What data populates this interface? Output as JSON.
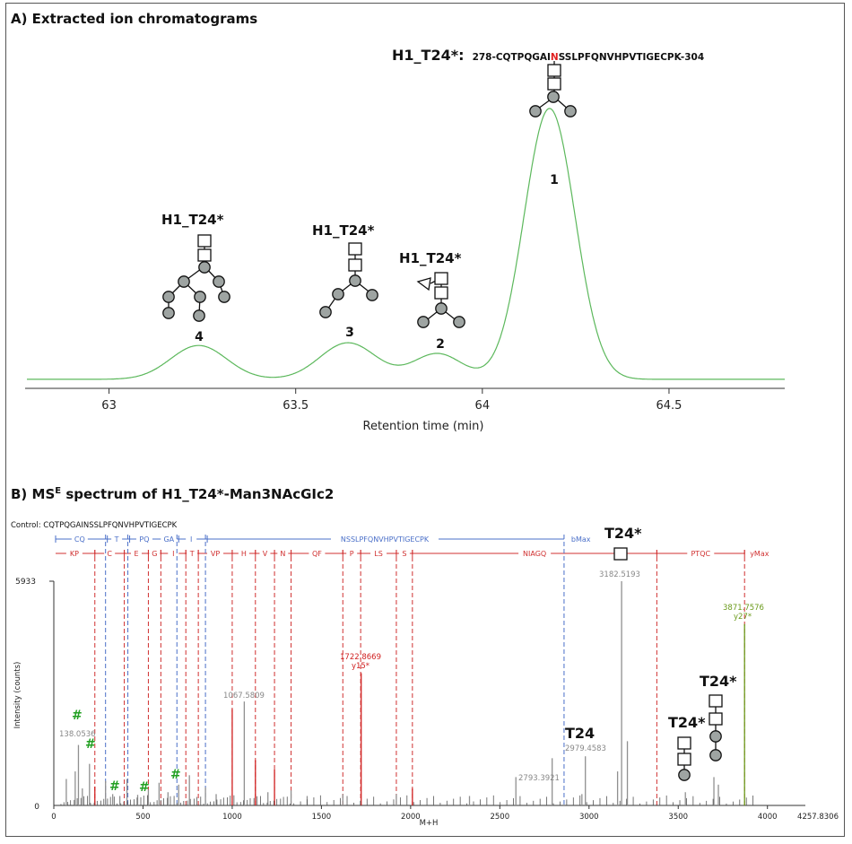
{
  "panelA": {
    "title": "A) Extracted ion chromatograms",
    "peptide_label": "H1_T24*:",
    "peptide_seq_pre": "278-CQTPQGAI",
    "peptide_seq_site": "N",
    "peptide_seq_post": "SSLPFQNVHPVTIGECPK-304",
    "site_color": "#e02020",
    "glycan_label": "H1_T24*",
    "xlabel": "Retention time (min)",
    "xticks": [
      "63",
      "63.5",
      "64",
      "64.5"
    ],
    "peak_numbers": [
      "1",
      "2",
      "3",
      "4"
    ],
    "trace_color": "#5cb85c"
  },
  "chart_data": [
    {
      "type": "line",
      "title": "A) Extracted ion chromatograms",
      "xlabel": "Retention time (min)",
      "ylabel": "",
      "xlim": [
        62.78,
        64.81
      ],
      "xticks": [
        63,
        63.5,
        64,
        64.5
      ],
      "baseline": 0.03,
      "peaks": [
        {
          "label": "4",
          "rt": 63.24,
          "height": 0.125,
          "width": 0.075
        },
        {
          "label": "3",
          "rt": 63.64,
          "height": 0.135,
          "width": 0.075
        },
        {
          "label": "2",
          "rt": 63.88,
          "height": 0.095,
          "width": 0.065
        },
        {
          "label": "1",
          "rt": 64.18,
          "height": 1.0,
          "width": 0.068
        }
      ]
    },
    {
      "type": "bar",
      "title": "B) MSE spectrum of H1_T24*-Man3NAcGIc2",
      "xlabel": "M+H",
      "ylabel": "Intensity (counts)",
      "xlim": [
        0,
        4257.8306
      ],
      "ylim": [
        0,
        5933
      ],
      "xticks": [
        0,
        500,
        1000,
        1500,
        2000,
        2500,
        3000,
        3500,
        4000
      ],
      "peaks": [
        {
          "mz": 138.0536,
          "intensity": 1600,
          "color": "#909090",
          "label": "138.0536"
        },
        {
          "mz": 70,
          "intensity": 700,
          "color": "#909090"
        },
        {
          "mz": 120,
          "intensity": 900,
          "color": "#909090"
        },
        {
          "mz": 160,
          "intensity": 450,
          "color": "#909090"
        },
        {
          "mz": 200,
          "intensity": 1100,
          "color": "#909090"
        },
        {
          "mz": 230,
          "intensity": 500,
          "color": "#d02020"
        },
        {
          "mz": 290,
          "intensity": 650,
          "color": "#909090"
        },
        {
          "mz": 330,
          "intensity": 300,
          "color": "#909090"
        },
        {
          "mz": 370,
          "intensity": 250,
          "color": "#909090"
        },
        {
          "mz": 410,
          "intensity": 700,
          "color": "#909090"
        },
        {
          "mz": 470,
          "intensity": 280,
          "color": "#909090"
        },
        {
          "mz": 530,
          "intensity": 420,
          "color": "#909090"
        },
        {
          "mz": 590,
          "intensity": 600,
          "color": "#909090"
        },
        {
          "mz": 640,
          "intensity": 350,
          "color": "#909090"
        },
        {
          "mz": 700,
          "intensity": 550,
          "color": "#909090"
        },
        {
          "mz": 760,
          "intensity": 800,
          "color": "#909090"
        },
        {
          "mz": 850,
          "intensity": 480,
          "color": "#909090"
        },
        {
          "mz": 910,
          "intensity": 300,
          "color": "#909090"
        },
        {
          "mz": 1000,
          "intensity": 2550,
          "color": "#d02020"
        },
        {
          "mz": 1067.5809,
          "intensity": 2750,
          "color": "#909090",
          "label": "1067.5809"
        },
        {
          "mz": 1130,
          "intensity": 1200,
          "color": "#d02020"
        },
        {
          "mz": 1200,
          "intensity": 350,
          "color": "#909090"
        },
        {
          "mz": 1237,
          "intensity": 950,
          "color": "#d02020"
        },
        {
          "mz": 1330,
          "intensity": 400,
          "color": "#909090"
        },
        {
          "mz": 1420,
          "intensity": 250,
          "color": "#909090"
        },
        {
          "mz": 1620,
          "intensity": 300,
          "color": "#909090"
        },
        {
          "mz": 1722.8669,
          "intensity": 3500,
          "color": "#d02020",
          "label": "1722.8669",
          "sublabel": "y15*"
        },
        {
          "mz": 1920,
          "intensity": 300,
          "color": "#909090"
        },
        {
          "mz": 2010,
          "intensity": 450,
          "color": "#d02020"
        },
        {
          "mz": 2330,
          "intensity": 250,
          "color": "#909090"
        },
        {
          "mz": 2590,
          "intensity": 750,
          "color": "#909090"
        },
        {
          "mz": 2793.3921,
          "intensity": 1250,
          "color": "#909090",
          "label": "2793.3921"
        },
        {
          "mz": 2960,
          "intensity": 300,
          "color": "#909090"
        },
        {
          "mz": 2979.4583,
          "intensity": 1300,
          "color": "#909090",
          "label": "2979.4583"
        },
        {
          "mz": 3160,
          "intensity": 900,
          "color": "#909090"
        },
        {
          "mz": 3182.5193,
          "intensity": 5933,
          "color": "#909090",
          "label": "3182.5193"
        },
        {
          "mz": 3215,
          "intensity": 1700,
          "color": "#909090"
        },
        {
          "mz": 3540,
          "intensity": 350,
          "color": "#909090"
        },
        {
          "mz": 3700,
          "intensity": 750,
          "color": "#909090"
        },
        {
          "mz": 3725,
          "intensity": 550,
          "color": "#909090"
        },
        {
          "mz": 3871.7576,
          "intensity": 4800,
          "color": "#6a9a1a",
          "label": "3871.7576",
          "sublabel": "y27*"
        }
      ],
      "b_ion_lines_mz": [
        290,
        415,
        690,
        850,
        2860
      ],
      "y_ion_lines_mz": [
        230,
        395,
        530,
        600,
        740,
        810,
        1000,
        1130,
        1237,
        1330,
        1620,
        1720,
        1920,
        2010,
        3380,
        3871.7576
      ]
    }
  ],
  "panelB": {
    "title_pre": "B) MS",
    "title_sup": "E",
    "title_post": " spectrum of H1_T24*-Man3NAcGIc2",
    "control_label": "Control: CQTPQGAINSSLPFQNVHPVTIGECPK",
    "b_row": [
      "CQ",
      "T",
      "PQ",
      "GA",
      "I",
      "NSSLPFQNVHPVTIGECPK",
      "bMax"
    ],
    "y_row": [
      "KP",
      "C",
      "E",
      "G",
      "I",
      "T",
      "VP",
      "H",
      "V",
      "N",
      "QF",
      "P",
      "LS",
      "S",
      "NIAGQ",
      "PTQC",
      "yMax"
    ],
    "ylabel": "Intensity (counts)",
    "ymax_label": "5933",
    "ymin_label": "0",
    "xlabel": "M+H",
    "xticks": [
      "0",
      "500",
      "1000",
      "1500",
      "2000",
      "2500",
      "3000",
      "3500",
      "4000"
    ],
    "xmax_label": "4257.8306",
    "peak_labels": [
      "138.0536",
      "1067.5809",
      "1722.8669",
      "y15*",
      "2793.3921",
      "2979.4583",
      "3182.5193",
      "3871.7576",
      "y27*"
    ],
    "hash_mark": "#",
    "t24_label": "T24",
    "t24star_label": "T24*",
    "b_color": "#4a6fc8",
    "y_color": "#d03030"
  }
}
